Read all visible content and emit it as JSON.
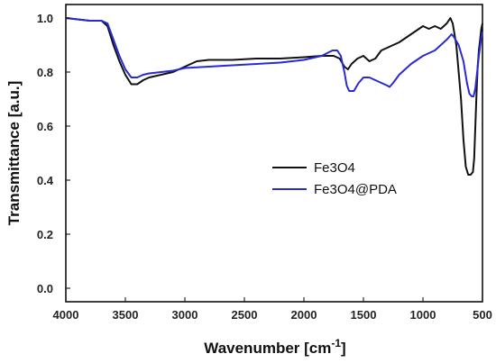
{
  "chart_data": {
    "type": "line",
    "xlabel": "Wavenumber [cm",
    "xlabel_superscript": "-1",
    "xlabel_close": "]",
    "ylabel": "Transmittance [a.u.]",
    "xlim": [
      4000,
      500
    ],
    "ylim": [
      -0.05,
      1.05
    ],
    "x_reversed": true,
    "grid": false,
    "legend_position": "center-right",
    "x_ticks": [
      4000,
      3500,
      3000,
      2500,
      2000,
      1500,
      1000,
      500
    ],
    "y_ticks": [
      0.0,
      0.2,
      0.4,
      0.6,
      0.8,
      1.0
    ],
    "x_tick_labels": [
      "4000",
      "3500",
      "3000",
      "2500",
      "2000",
      "1500",
      "1000",
      "500"
    ],
    "y_tick_labels": [
      "0.0",
      "0.2",
      "0.4",
      "0.6",
      "0.8",
      "1.0"
    ],
    "series": [
      {
        "name": "Fe3O4",
        "color": "#111111",
        "points": [
          [
            4000,
            1.0
          ],
          [
            3800,
            0.99
          ],
          [
            3700,
            0.99
          ],
          [
            3650,
            0.97
          ],
          [
            3600,
            0.9
          ],
          [
            3550,
            0.84
          ],
          [
            3500,
            0.79
          ],
          [
            3450,
            0.755
          ],
          [
            3400,
            0.755
          ],
          [
            3350,
            0.77
          ],
          [
            3300,
            0.78
          ],
          [
            3200,
            0.79
          ],
          [
            3100,
            0.8
          ],
          [
            3000,
            0.82
          ],
          [
            2900,
            0.84
          ],
          [
            2800,
            0.845
          ],
          [
            2600,
            0.845
          ],
          [
            2400,
            0.85
          ],
          [
            2200,
            0.85
          ],
          [
            2000,
            0.855
          ],
          [
            1850,
            0.86
          ],
          [
            1750,
            0.86
          ],
          [
            1700,
            0.85
          ],
          [
            1660,
            0.82
          ],
          [
            1630,
            0.81
          ],
          [
            1600,
            0.83
          ],
          [
            1550,
            0.85
          ],
          [
            1500,
            0.86
          ],
          [
            1450,
            0.84
          ],
          [
            1400,
            0.85
          ],
          [
            1350,
            0.88
          ],
          [
            1300,
            0.89
          ],
          [
            1200,
            0.91
          ],
          [
            1100,
            0.94
          ],
          [
            1000,
            0.97
          ],
          [
            950,
            0.96
          ],
          [
            900,
            0.97
          ],
          [
            850,
            0.96
          ],
          [
            800,
            0.98
          ],
          [
            770,
            1.0
          ],
          [
            750,
            0.98
          ],
          [
            720,
            0.9
          ],
          [
            700,
            0.8
          ],
          [
            680,
            0.7
          ],
          [
            660,
            0.55
          ],
          [
            640,
            0.45
          ],
          [
            620,
            0.42
          ],
          [
            600,
            0.42
          ],
          [
            580,
            0.43
          ],
          [
            570,
            0.48
          ],
          [
            560,
            0.6
          ],
          [
            550,
            0.72
          ],
          [
            540,
            0.82
          ],
          [
            530,
            0.88
          ],
          [
            520,
            0.92
          ],
          [
            510,
            0.96
          ],
          [
            500,
            0.98
          ]
        ]
      },
      {
        "name": "Fe3O4@PDA",
        "color": "#2a2ad4",
        "points": [
          [
            4000,
            1.0
          ],
          [
            3800,
            0.99
          ],
          [
            3700,
            0.99
          ],
          [
            3650,
            0.98
          ],
          [
            3600,
            0.92
          ],
          [
            3550,
            0.86
          ],
          [
            3500,
            0.81
          ],
          [
            3450,
            0.78
          ],
          [
            3400,
            0.78
          ],
          [
            3350,
            0.79
          ],
          [
            3300,
            0.795
          ],
          [
            3200,
            0.8
          ],
          [
            3100,
            0.805
          ],
          [
            3000,
            0.815
          ],
          [
            2800,
            0.82
          ],
          [
            2600,
            0.825
          ],
          [
            2400,
            0.83
          ],
          [
            2200,
            0.835
          ],
          [
            2000,
            0.845
          ],
          [
            1850,
            0.86
          ],
          [
            1760,
            0.88
          ],
          [
            1720,
            0.88
          ],
          [
            1690,
            0.86
          ],
          [
            1660,
            0.8
          ],
          [
            1640,
            0.75
          ],
          [
            1620,
            0.73
          ],
          [
            1580,
            0.73
          ],
          [
            1540,
            0.76
          ],
          [
            1500,
            0.78
          ],
          [
            1450,
            0.78
          ],
          [
            1400,
            0.77
          ],
          [
            1350,
            0.76
          ],
          [
            1300,
            0.75
          ],
          [
            1280,
            0.745
          ],
          [
            1250,
            0.76
          ],
          [
            1200,
            0.79
          ],
          [
            1100,
            0.83
          ],
          [
            1000,
            0.86
          ],
          [
            900,
            0.88
          ],
          [
            850,
            0.9
          ],
          [
            800,
            0.92
          ],
          [
            760,
            0.94
          ],
          [
            740,
            0.93
          ],
          [
            700,
            0.9
          ],
          [
            660,
            0.84
          ],
          [
            630,
            0.76
          ],
          [
            610,
            0.72
          ],
          [
            590,
            0.71
          ],
          [
            575,
            0.71
          ],
          [
            560,
            0.74
          ],
          [
            545,
            0.8
          ],
          [
            530,
            0.86
          ],
          [
            515,
            0.91
          ],
          [
            500,
            0.95
          ]
        ]
      }
    ]
  }
}
